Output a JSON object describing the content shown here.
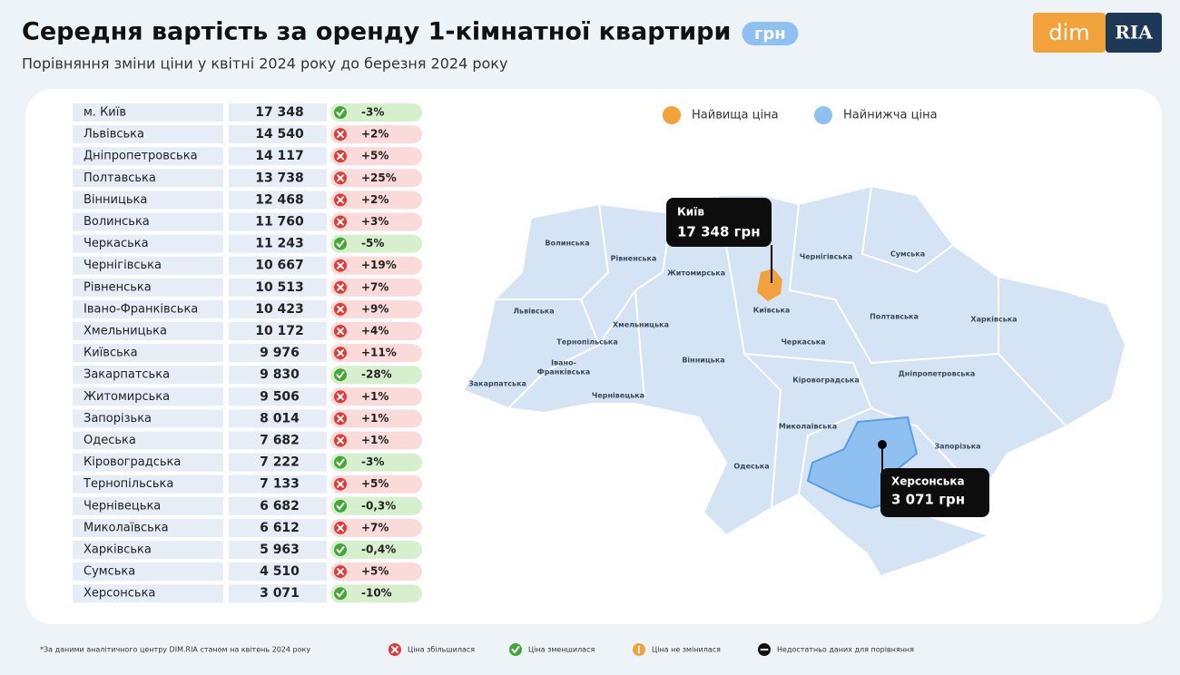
{
  "header": {
    "title": "Середня вартість за оренду 1-кімнатної квартири",
    "unit": "грн",
    "subtitle": "Порівняння зміни ціни у квітні 2024 року до березня 2024 року"
  },
  "logo": {
    "left": "dim",
    "right": "RIA"
  },
  "table": {
    "rows": [
      [
        "м. Київ",
        "17 348",
        "-3%"
      ],
      [
        "Львівська",
        "14 540",
        "+2%"
      ],
      [
        "Дніпропетровська",
        "14 117",
        "+5%"
      ],
      [
        "Полтавська",
        "13 738",
        "+25%"
      ],
      [
        "Вінницька",
        "12 468",
        "+2%"
      ],
      [
        "Волинська",
        "11 760",
        "+3%"
      ],
      [
        "Черкаська",
        "11 243",
        "-5%"
      ],
      [
        "Чернігівська",
        "10 667",
        "+19%"
      ],
      [
        "Рівненська",
        "10 513",
        "+7%"
      ],
      [
        "Івано-Франківська",
        "10 423",
        "+9%"
      ],
      [
        "Хмельницька",
        "10 172",
        "+4%"
      ],
      [
        "Київська",
        "9 976",
        "+11%"
      ],
      [
        "Закарпатська",
        "9 830",
        "-28%"
      ],
      [
        "Житомирська",
        "9 506",
        "+1%"
      ],
      [
        "Запорізька",
        "8 014",
        "+1%"
      ],
      [
        "Одеська",
        "7 682",
        "+1%"
      ],
      [
        "Кіровоградська",
        "7 222",
        "-3%"
      ],
      [
        "Тернопільська",
        "7 133",
        "+5%"
      ],
      [
        "Чернівецька",
        "6 682",
        "-0,3%"
      ],
      [
        "Миколаївська",
        "6 612",
        "+7%"
      ],
      [
        "Харківська",
        "5 963",
        "-0,4%"
      ],
      [
        "Сумська",
        "4 510",
        "+5%"
      ],
      [
        "Херсонська",
        "3 071",
        "-10%"
      ]
    ]
  },
  "map": {
    "legend": [
      "Найвища ціна",
      "Найнижча ціна"
    ],
    "regions": [
      "Волинська",
      "Рівненська",
      "Житомирська",
      "Чернігівська",
      "Сумська",
      "Львівська",
      "Київська",
      "Полтавська",
      "Харківська",
      "Хмельницька",
      "Тернопільська",
      "Черкаська",
      "Вінницька",
      "Івано-",
      "Франківська",
      "Закарпатська",
      "Кіровоградська",
      "Дніпропетровська",
      "Чернівецька",
      "Миколаївська",
      "Запорізька",
      "Одеська"
    ],
    "callouts": [
      {
        "title": "Київ",
        "value": "17 348 грн"
      },
      {
        "title": "Херсонська",
        "value": "3 071 грн"
      }
    ]
  },
  "footer": {
    "note": "*За даними аналітичного центру DIM.RIA станом на квітень 2024 року",
    "legend": [
      "Ціна збільшилася",
      "Ціна зменшилася",
      "Ціна не змінилася",
      "Недостатньо даних для порівняння"
    ]
  }
}
